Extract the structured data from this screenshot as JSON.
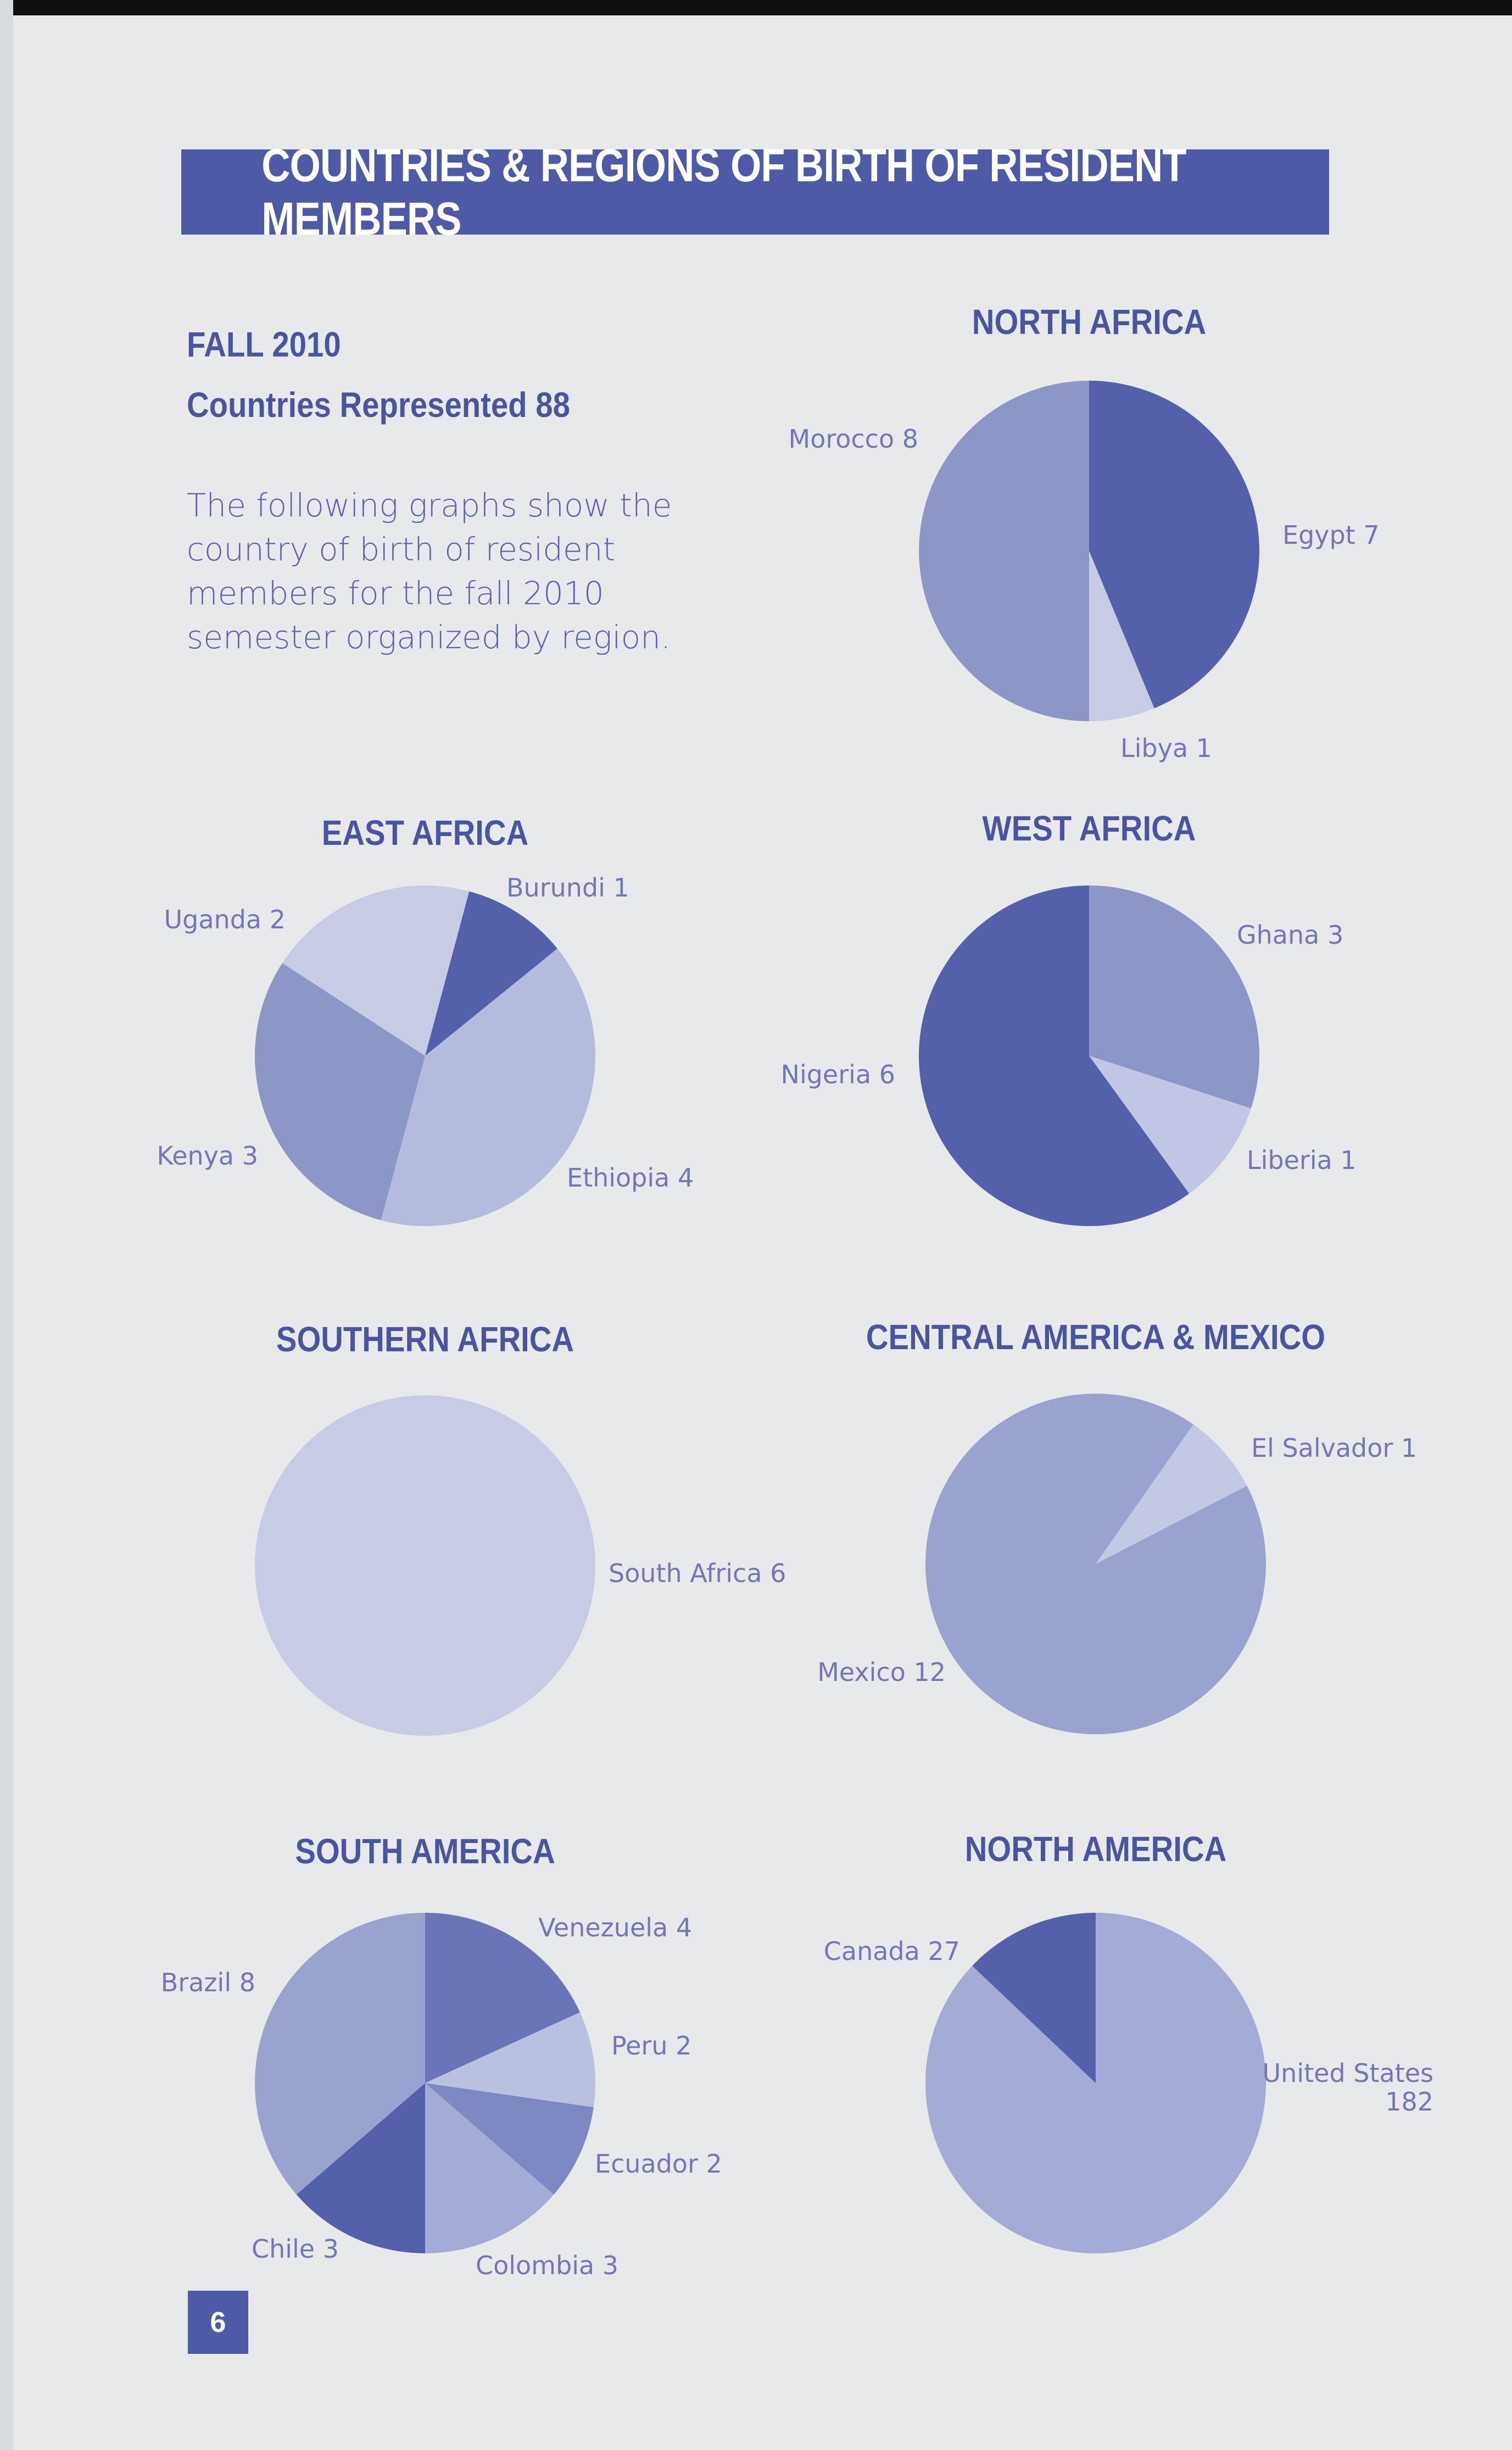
{
  "header": {
    "title": "COUNTRIES & REGIONS OF BIRTH OF RESIDENT MEMBERS"
  },
  "intro": {
    "semester": "FALL 2010",
    "countries_represented": "Countries Represented 88",
    "description": "The following graphs show the country of birth of resident members for the fall 2010 semester organized by region."
  },
  "page_number": "6",
  "colors": {
    "dark": "#5460aa",
    "medium": "#8c97c8",
    "light": "#b9bfe0",
    "pale": "#c7cbe4",
    "banner": "#4e5aa6"
  },
  "chart_data": [
    {
      "type": "pie",
      "title": "NORTH AFRICA",
      "slices": [
        {
          "name": "Egypt 7",
          "value": 7,
          "color": "#5460aa"
        },
        {
          "name": "Libya 1",
          "value": 1,
          "color": "#c7cbe4"
        },
        {
          "name": "Morocco 8",
          "value": 8,
          "color": "#8c97c8"
        }
      ]
    },
    {
      "type": "pie",
      "title": "EAST AFRICA",
      "slices": [
        {
          "name": "Burundi 1",
          "value": 1,
          "color": "#5460aa"
        },
        {
          "name": "Ethiopia 4",
          "value": 4,
          "color": "#b4bbdd"
        },
        {
          "name": "Kenya 3",
          "value": 3,
          "color": "#8c97c8"
        },
        {
          "name": "Uganda 2",
          "value": 2,
          "color": "#c7cbe4"
        }
      ]
    },
    {
      "type": "pie",
      "title": "WEST AFRICA",
      "slices": [
        {
          "name": "Ghana 3",
          "value": 3,
          "color": "#8c97c8"
        },
        {
          "name": "Liberia 1",
          "value": 1,
          "color": "#c0c6e3"
        },
        {
          "name": "Nigeria 6",
          "value": 6,
          "color": "#5460aa"
        }
      ]
    },
    {
      "type": "pie",
      "title": "SOUTHERN AFRICA",
      "slices": [
        {
          "name": "South Africa 6",
          "value": 6,
          "color": "#c7cbe4"
        }
      ]
    },
    {
      "type": "pie",
      "title": "CENTRAL AMERICA & MEXICO",
      "slices": [
        {
          "name": "El Salvador 1",
          "value": 1,
          "color": "#c3c8e3"
        },
        {
          "name": "Mexico 12",
          "value": 12,
          "color": "#9aa3d0"
        }
      ]
    },
    {
      "type": "pie",
      "title": "SOUTH AMERICA",
      "slices": [
        {
          "name": "Venezuela 4",
          "value": 4,
          "color": "#6a74b6"
        },
        {
          "name": "Peru 2",
          "value": 2,
          "color": "#bac0e0"
        },
        {
          "name": "Ecuador 2",
          "value": 2,
          "color": "#7e88c2"
        },
        {
          "name": "Colombia 3",
          "value": 3,
          "color": "#a3abd6"
        },
        {
          "name": "Chile 3",
          "value": 3,
          "color": "#5460aa"
        },
        {
          "name": "Brazil 8",
          "value": 8,
          "color": "#9aa3d0"
        }
      ]
    },
    {
      "type": "pie",
      "title": "NORTH AMERICA",
      "slices": [
        {
          "name": "United States 182",
          "value": 182,
          "color": "#a3abd6"
        },
        {
          "name": "Canada 27",
          "value": 27,
          "color": "#5460aa"
        }
      ]
    }
  ]
}
